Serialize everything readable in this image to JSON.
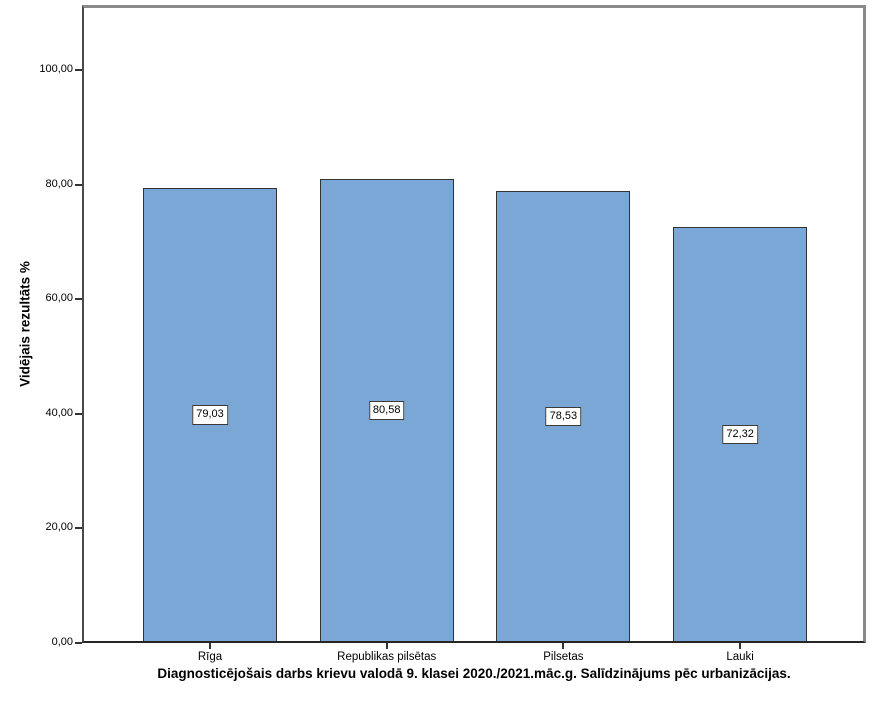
{
  "chart_data": {
    "type": "bar",
    "title": "Diagnosticējošais darbs krievu valodā 9. klasei 2020./2021.māc.g. Salīdzinājums pēc urbanizācijas.",
    "xlabel": "",
    "ylabel": "Vidējais rezultāts %",
    "categories": [
      "Rīga",
      "Republikas pilsētas",
      "Pilsetas",
      "Lauki"
    ],
    "values": [
      79.03,
      80.58,
      78.53,
      72.32
    ],
    "value_labels": [
      "79,03",
      "80,58",
      "78,53",
      "72,32"
    ],
    "yticks": [
      0,
      20,
      40,
      60,
      80,
      100
    ],
    "ytick_labels": [
      "0,00",
      "20,00",
      "40,00",
      "60,00",
      "80,00",
      "100,00"
    ],
    "ylim": [
      0,
      111.3
    ],
    "grid": false,
    "legend_position": "none",
    "decimal_separator": ",",
    "colors": {
      "bar_fill": "#7aa7d5",
      "bar_border": "#333333",
      "axis_line": "#4a4a4a",
      "frame_line": "#8a8a8a",
      "text": "#000000",
      "background": "#ffffff",
      "value_label_background": "#ffffff",
      "value_label_border": "#3a3a3a"
    }
  }
}
